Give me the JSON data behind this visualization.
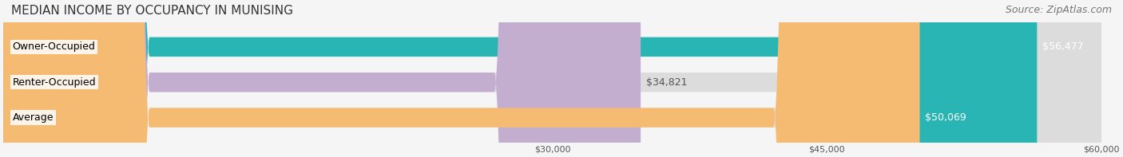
{
  "title": "MEDIAN INCOME BY OCCUPANCY IN MUNISING",
  "source": "Source: ZipAtlas.com",
  "categories": [
    "Owner-Occupied",
    "Renter-Occupied",
    "Average"
  ],
  "values": [
    56477,
    34821,
    50069
  ],
  "bar_colors": [
    "#2ab5b5",
    "#c4aed0",
    "#f5bb72"
  ],
  "bar_bg_color": "#e8e8e8",
  "value_labels": [
    "$56,477",
    "$34,821",
    "$50,069"
  ],
  "xlim": [
    0,
    60000
  ],
  "xticks": [
    30000,
    45000,
    60000
  ],
  "xtick_labels": [
    "$30,000",
    "$45,000",
    "$60,000"
  ],
  "title_fontsize": 11,
  "source_fontsize": 9,
  "label_fontsize": 9,
  "bar_height": 0.55,
  "bg_color": "#f5f5f5",
  "bar_bg_alpha": 1.0
}
